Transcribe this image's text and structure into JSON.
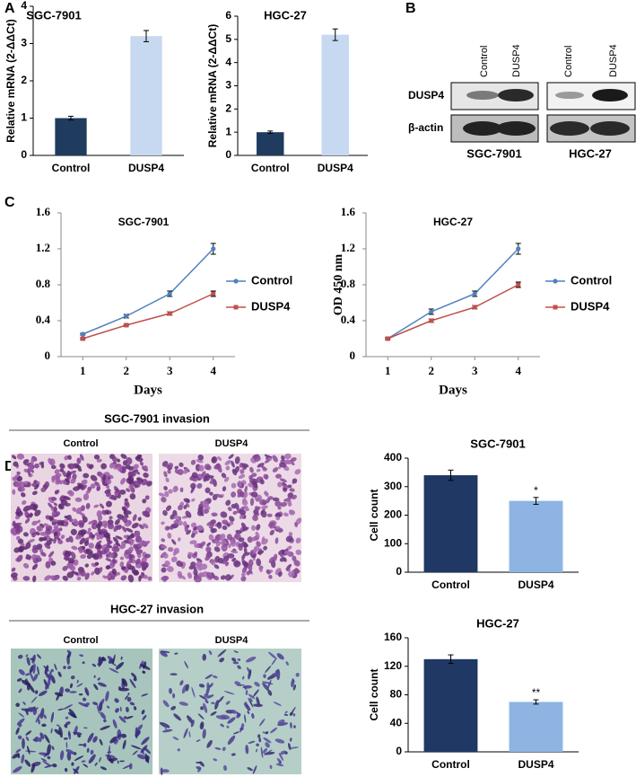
{
  "panel_labels": [
    "A",
    "B",
    "C",
    "D"
  ],
  "blot": {
    "lanes": [
      "Control",
      "DUSP4"
    ],
    "bands": [
      "DUSP4",
      "β-actin"
    ],
    "cell_lines": [
      "SGC-7901",
      "HGC-27"
    ]
  },
  "invasion": {
    "titles": [
      "SGC-7901  invasion",
      "HGC-27  invasion"
    ],
    "conditions": [
      "Control",
      "DUSP4"
    ]
  },
  "chart_data": [
    {
      "type": "bar",
      "title": "SGC-7901",
      "y_label": "Relative mRNA (2-ΔΔCt)",
      "categories": [
        "Control",
        "DUSP4"
      ],
      "values": [
        1,
        3.2
      ],
      "errors": [
        0.05,
        0.15
      ],
      "colors": [
        "#1f3b5e",
        "#c6d9f1"
      ],
      "ylim": [
        0,
        4
      ],
      "yticks": [
        0,
        1,
        2,
        3,
        4
      ]
    },
    {
      "type": "bar",
      "title": "HGC-27",
      "y_label": "Relative mRNA (2-ΔΔCt)",
      "categories": [
        "Control",
        "DUSP4"
      ],
      "values": [
        1,
        5.2
      ],
      "errors": [
        0.05,
        0.25
      ],
      "colors": [
        "#1f3b5e",
        "#c6d9f1"
      ],
      "ylim": [
        0,
        6
      ],
      "yticks": [
        0,
        1,
        2,
        3,
        4,
        5,
        6
      ]
    },
    {
      "type": "line",
      "title": "SGC-7901",
      "x_label": "Days",
      "x": [
        1,
        2,
        3,
        4
      ],
      "xlim": [
        0.5,
        4.5
      ],
      "xticks": [
        1,
        2,
        3,
        4
      ],
      "ylim": [
        0,
        1.6
      ],
      "yticks": [
        0,
        0.4,
        0.8,
        1.2,
        1.6
      ],
      "legend": "right",
      "series": [
        {
          "name": "Control",
          "color": "#4f81bd",
          "marker": "circle",
          "values": [
            0.25,
            0.45,
            0.7,
            1.2
          ],
          "errors": [
            0.01,
            0.02,
            0.03,
            0.06
          ]
        },
        {
          "name": "DUSP4",
          "color": "#c0504d",
          "marker": "square",
          "values": [
            0.2,
            0.35,
            0.48,
            0.7
          ],
          "errors": [
            0.01,
            0.01,
            0.02,
            0.03
          ]
        }
      ]
    },
    {
      "type": "line",
      "title": "HGC-27",
      "x_label": "Days",
      "y_label": "OD 450 nm",
      "x": [
        1,
        2,
        3,
        4
      ],
      "xlim": [
        0.5,
        4.5
      ],
      "xticks": [
        1,
        2,
        3,
        4
      ],
      "ylim": [
        0,
        1.6
      ],
      "yticks": [
        0,
        0.4,
        0.8,
        1.2,
        1.6
      ],
      "legend": "right",
      "series": [
        {
          "name": "Control",
          "color": "#4f81bd",
          "marker": "circle",
          "values": [
            0.2,
            0.5,
            0.7,
            1.2
          ],
          "errors": [
            0.01,
            0.03,
            0.03,
            0.06
          ]
        },
        {
          "name": "DUSP4",
          "color": "#c0504d",
          "marker": "square",
          "values": [
            0.2,
            0.4,
            0.55,
            0.8
          ],
          "errors": [
            0.01,
            0.02,
            0.02,
            0.03
          ]
        }
      ]
    },
    {
      "type": "bar",
      "title": "SGC-7901",
      "y_label": "Cell count",
      "categories": [
        "Control",
        "DUSP4"
      ],
      "values": [
        340,
        250
      ],
      "errors": [
        18,
        12
      ],
      "significance": [
        null,
        "*"
      ],
      "colors": [
        "#1f3864",
        "#8db4e2"
      ],
      "ylim": [
        0,
        400
      ],
      "yticks": [
        0,
        100,
        200,
        300,
        400
      ]
    },
    {
      "type": "bar",
      "title": "HGC-27",
      "y_label": "Cell count",
      "categories": [
        "Control",
        "DUSP4"
      ],
      "values": [
        130,
        70
      ],
      "errors": [
        6,
        3
      ],
      "significance": [
        null,
        "**"
      ],
      "colors": [
        "#1f3864",
        "#8db4e2"
      ],
      "ylim": [
        0,
        160
      ],
      "yticks": [
        0,
        40,
        80,
        120,
        160
      ]
    }
  ]
}
